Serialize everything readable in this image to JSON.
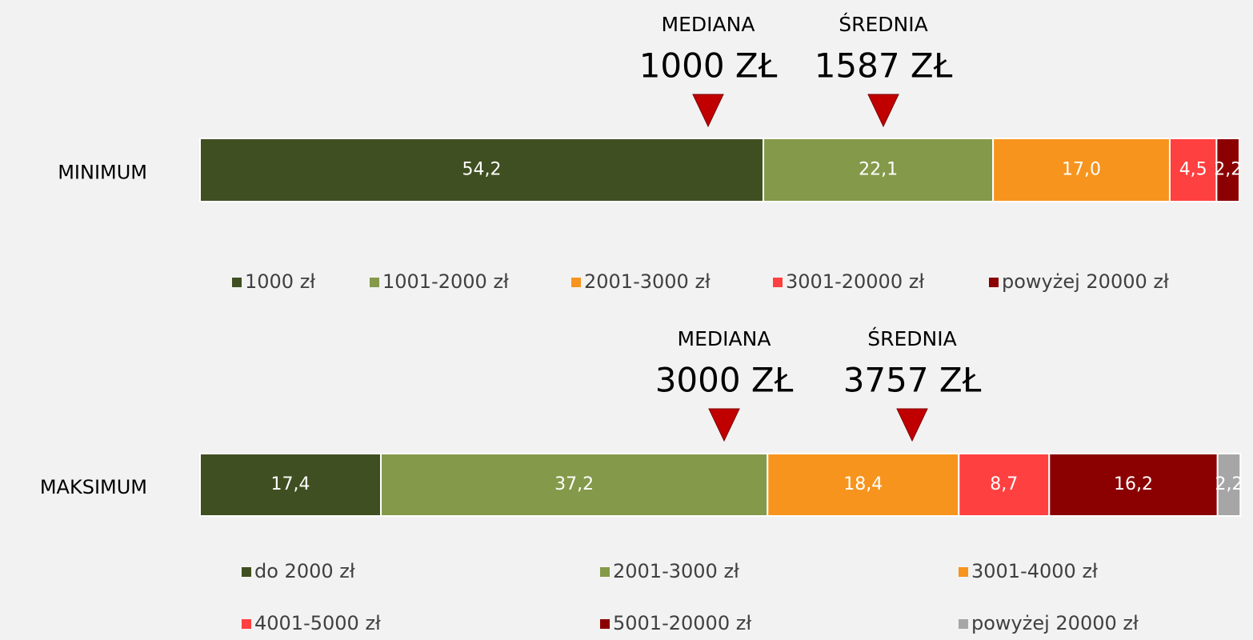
{
  "chart_data": [
    {
      "type": "bar",
      "orientation": "horizontal",
      "stacked": true,
      "categories": [
        "MINIMUM"
      ],
      "xlim": [
        0,
        100
      ],
      "annotations": [
        {
          "label": "MEDIANA",
          "value_text": "1000 ZŁ"
        },
        {
          "label": "ŚREDNIA",
          "value_text": "1587 ZŁ"
        }
      ],
      "series": [
        {
          "name": "1000 zł",
          "color": "#404f21",
          "values": [
            54.2
          ],
          "value_labels": [
            "54,2"
          ]
        },
        {
          "name": "1001-2000 zł",
          "color": "#84994a",
          "values": [
            22.1
          ],
          "value_labels": [
            "22,1"
          ]
        },
        {
          "name": "2001-3000 zł",
          "color": "#f7941d",
          "values": [
            17.0
          ],
          "value_labels": [
            "17,0"
          ]
        },
        {
          "name": "3001-20000 zł",
          "color": "#ff4040",
          "values": [
            4.5
          ],
          "value_labels": [
            "4,5"
          ]
        },
        {
          "name": "powyżej 20000 zł",
          "color": "#8b0000",
          "values": [
            2.2
          ],
          "value_labels": [
            "2,2"
          ]
        }
      ]
    },
    {
      "type": "bar",
      "orientation": "horizontal",
      "stacked": true,
      "categories": [
        "MAKSIMUM"
      ],
      "xlim": [
        0,
        100
      ],
      "annotations": [
        {
          "label": "MEDIANA",
          "value_text": "3000 ZŁ"
        },
        {
          "label": "ŚREDNIA",
          "value_text": "3757 ZŁ"
        }
      ],
      "series": [
        {
          "name": "do 2000 zł",
          "color": "#404f21",
          "values": [
            17.4
          ],
          "value_labels": [
            "17,4"
          ]
        },
        {
          "name": "2001-3000 zł",
          "color": "#84994a",
          "values": [
            37.2
          ],
          "value_labels": [
            "37,2"
          ]
        },
        {
          "name": "3001-4000 zł",
          "color": "#f7941d",
          "values": [
            18.4
          ],
          "value_labels": [
            "18,4"
          ]
        },
        {
          "name": "4001-5000 zł",
          "color": "#ff4040",
          "values": [
            8.7
          ],
          "value_labels": [
            "8,7"
          ]
        },
        {
          "name": "5001-20000 zł",
          "color": "#8b0000",
          "values": [
            16.2
          ],
          "value_labels": [
            "16,2"
          ]
        },
        {
          "name": "powyżej 20000 zł",
          "color": "#a6a6a6",
          "values": [
            2.2
          ],
          "value_labels": [
            "2,2"
          ]
        }
      ]
    }
  ]
}
